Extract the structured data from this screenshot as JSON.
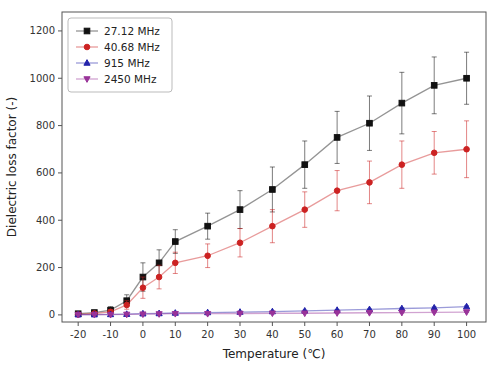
{
  "chart_data": {
    "type": "line",
    "xlabel": "Temperature (℃)",
    "ylabel": "Dielectric loss factor (-)",
    "x": [
      -20,
      -15,
      -10,
      -5,
      0,
      5,
      10,
      20,
      30,
      40,
      50,
      60,
      70,
      80,
      90,
      100
    ],
    "series": [
      {
        "name": "27.12 MHz",
        "color": "#111111",
        "marker": "square",
        "values": [
          5,
          10,
          20,
          60,
          160,
          220,
          310,
          375,
          445,
          530,
          635,
          750,
          810,
          895,
          970,
          1000
        ],
        "errors": [
          4,
          7,
          15,
          25,
          60,
          55,
          50,
          55,
          80,
          95,
          100,
          110,
          115,
          130,
          120,
          110
        ]
      },
      {
        "name": "40.68 MHz",
        "color": "#cc2222",
        "marker": "circle",
        "values": [
          2,
          6,
          13,
          42,
          115,
          160,
          220,
          250,
          305,
          375,
          445,
          525,
          560,
          635,
          685,
          700
        ],
        "errors": [
          2,
          5,
          10,
          18,
          45,
          50,
          45,
          50,
          60,
          70,
          75,
          85,
          90,
          100,
          90,
          120
        ]
      },
      {
        "name": "915 MHz",
        "color": "#2222aa",
        "marker": "triangle-up",
        "values": [
          1,
          1,
          2,
          3,
          5,
          6,
          8,
          10,
          12,
          14,
          17,
          20,
          23,
          27,
          30,
          35
        ],
        "errors": [
          0.5,
          0.5,
          0.5,
          1,
          1.5,
          1.5,
          2,
          2,
          2,
          2,
          3,
          3,
          3,
          3,
          4,
          4
        ]
      },
      {
        "name": "2450 MHz",
        "color": "#993399",
        "marker": "triangle-down",
        "values": [
          1,
          1,
          1,
          2,
          3,
          4,
          5,
          5,
          6,
          7,
          7,
          8,
          9,
          10,
          11,
          12
        ],
        "errors": [
          0.3,
          0.3,
          0.3,
          0.5,
          0.8,
          1,
          1,
          1,
          1,
          1,
          1,
          1.5,
          1.5,
          1.5,
          2,
          2
        ]
      }
    ],
    "xlim": [
      -25,
      106
    ],
    "ylim": [
      -30,
      1280
    ],
    "xticks": [
      -20,
      -10,
      0,
      10,
      20,
      30,
      40,
      50,
      60,
      70,
      80,
      90,
      100
    ],
    "yticks": [
      0,
      200,
      400,
      600,
      800,
      1000,
      1200
    ],
    "legend": "upper left",
    "grid": false
  }
}
